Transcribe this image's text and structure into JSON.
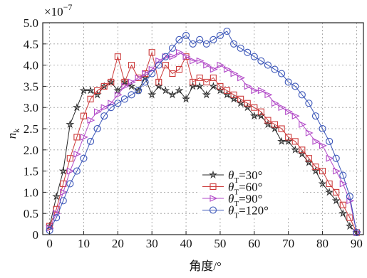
{
  "chart_data": {
    "type": "line",
    "xlabel": "角度/°",
    "ylabel_main": "n",
    "ylabel_sub": "k",
    "exponent_label": "×10",
    "exponent_power": "−7",
    "xlim": [
      -2,
      92
    ],
    "ylim": [
      0,
      5.0
    ],
    "xticks": [
      0,
      10,
      20,
      30,
      40,
      50,
      60,
      70,
      80,
      90
    ],
    "yticks": [
      0,
      0.5,
      1.0,
      1.5,
      2.0,
      2.5,
      3.0,
      3.5,
      4.0,
      4.5,
      5.0
    ],
    "ytick_labels": [
      "0",
      "0.5",
      "1.0",
      "1.5",
      "2.0",
      "2.5",
      "3.0",
      "3.5",
      "4.0",
      "4.5",
      "5.0"
    ],
    "grid": true,
    "legend_position": "bottom-center",
    "series": [
      {
        "name": "30°",
        "color": "#2a2a2a",
        "marker": "star",
        "x": [
          0,
          2,
          4,
          6,
          8,
          10,
          12,
          14,
          16,
          18,
          20,
          22,
          24,
          26,
          28,
          30,
          32,
          34,
          36,
          38,
          40,
          42,
          44,
          46,
          48,
          50,
          52,
          54,
          56,
          58,
          60,
          62,
          64,
          66,
          68,
          70,
          72,
          74,
          76,
          78,
          80,
          82,
          84,
          86,
          88,
          90
        ],
        "y": [
          0.2,
          0.9,
          1.5,
          2.6,
          3.0,
          3.4,
          3.4,
          3.3,
          3.5,
          3.6,
          3.4,
          3.6,
          3.5,
          3.4,
          3.7,
          3.3,
          3.5,
          3.4,
          3.3,
          3.4,
          3.2,
          3.5,
          3.5,
          3.3,
          3.5,
          3.4,
          3.3,
          3.2,
          3.1,
          3.0,
          2.8,
          2.8,
          2.6,
          2.5,
          2.2,
          2.2,
          2.0,
          1.9,
          1.7,
          1.5,
          1.2,
          1.0,
          0.8,
          0.5,
          0.2,
          0.05
        ]
      },
      {
        "name": "60°",
        "color": "#cc3a3a",
        "marker": "square",
        "x": [
          0,
          2,
          4,
          6,
          8,
          10,
          12,
          14,
          16,
          18,
          20,
          22,
          24,
          26,
          28,
          30,
          32,
          34,
          36,
          38,
          40,
          42,
          44,
          46,
          48,
          50,
          52,
          54,
          56,
          58,
          60,
          62,
          64,
          66,
          68,
          70,
          72,
          74,
          76,
          78,
          80,
          82,
          84,
          86,
          88,
          90
        ],
        "y": [
          0.2,
          0.6,
          1.2,
          1.8,
          2.3,
          2.8,
          3.2,
          3.4,
          3.5,
          3.6,
          4.2,
          3.6,
          4.0,
          3.7,
          3.8,
          4.3,
          3.6,
          4.0,
          3.8,
          3.9,
          4.2,
          3.6,
          3.7,
          3.6,
          3.7,
          3.5,
          3.4,
          3.3,
          3.2,
          3.1,
          3.0,
          2.9,
          2.7,
          2.6,
          2.5,
          2.3,
          2.2,
          2.0,
          1.8,
          1.6,
          1.5,
          1.2,
          1.0,
          0.7,
          0.4,
          0.05
        ]
      },
      {
        "name": "90°",
        "color": "#b24ac8",
        "marker": "triangle",
        "x": [
          0,
          2,
          4,
          6,
          8,
          10,
          12,
          14,
          16,
          18,
          20,
          22,
          24,
          26,
          28,
          30,
          32,
          34,
          36,
          38,
          40,
          42,
          44,
          46,
          48,
          50,
          52,
          54,
          56,
          58,
          60,
          62,
          64,
          66,
          68,
          70,
          72,
          74,
          76,
          78,
          80,
          82,
          84,
          86,
          88,
          90
        ],
        "y": [
          0.15,
          0.5,
          1.0,
          1.5,
          1.9,
          2.3,
          2.7,
          2.9,
          3.0,
          3.1,
          3.3,
          3.5,
          3.6,
          3.7,
          3.8,
          3.9,
          4.1,
          4.2,
          4.2,
          4.3,
          4.2,
          4.1,
          4.1,
          4.0,
          3.9,
          4.0,
          3.9,
          3.8,
          3.7,
          3.5,
          3.4,
          3.4,
          3.3,
          3.1,
          3.0,
          2.9,
          2.8,
          2.6,
          2.4,
          2.2,
          2.1,
          1.8,
          1.5,
          1.2,
          0.8,
          0.05
        ]
      },
      {
        "name": "120°",
        "color": "#3a55b8",
        "marker": "circle",
        "x": [
          0,
          2,
          4,
          6,
          8,
          10,
          12,
          14,
          16,
          18,
          20,
          22,
          24,
          26,
          28,
          30,
          32,
          34,
          36,
          38,
          40,
          42,
          44,
          46,
          48,
          50,
          52,
          54,
          56,
          58,
          60,
          62,
          64,
          66,
          68,
          70,
          72,
          74,
          76,
          78,
          80,
          82,
          84,
          86,
          88,
          90
        ],
        "y": [
          0.1,
          0.4,
          0.8,
          1.2,
          1.5,
          1.8,
          2.2,
          2.5,
          2.8,
          3.0,
          3.1,
          3.2,
          3.3,
          3.4,
          3.6,
          3.8,
          4.0,
          4.2,
          4.4,
          4.6,
          4.7,
          4.5,
          4.6,
          4.5,
          4.6,
          4.7,
          4.8,
          4.5,
          4.4,
          4.3,
          4.2,
          4.1,
          4.0,
          3.9,
          3.8,
          3.6,
          3.5,
          3.3,
          3.1,
          2.8,
          2.5,
          2.2,
          1.8,
          1.4,
          0.9,
          0.05
        ]
      }
    ]
  }
}
